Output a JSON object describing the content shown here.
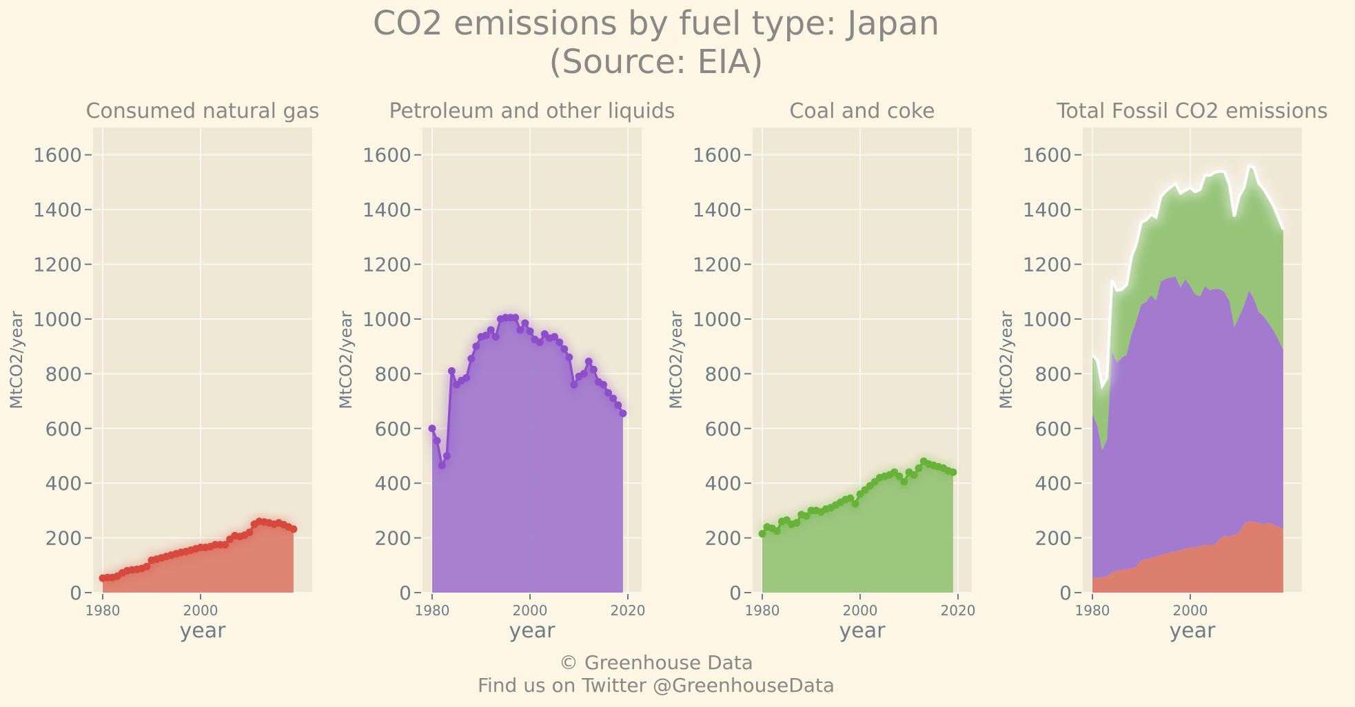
{
  "chart_data": {
    "type": "line",
    "title": "CO2 emissions by fuel type: Japan",
    "subtitle": "(Source: EIA)",
    "years": [
      1980,
      1981,
      1982,
      1983,
      1984,
      1985,
      1986,
      1987,
      1988,
      1989,
      1990,
      1991,
      1992,
      1993,
      1994,
      1995,
      1996,
      1997,
      1998,
      1999,
      2000,
      2001,
      2002,
      2003,
      2004,
      2005,
      2006,
      2007,
      2008,
      2009,
      2010,
      2011,
      2012,
      2013,
      2014,
      2015,
      2016,
      2017,
      2018,
      2019
    ],
    "ylim": [
      0,
      1700
    ],
    "yticks": [
      0,
      200,
      400,
      600,
      800,
      1000,
      1200,
      1400,
      1600
    ],
    "panels": [
      {
        "title": "Consumed natural gas",
        "color": "#d7493d",
        "fill": "#dd7f6e",
        "xlabel": "year",
        "ylabel": "MtCO2/year",
        "xticks": [
          "1980",
          "2000"
        ],
        "values": [
          53,
          55,
          55,
          60,
          72,
          80,
          83,
          85,
          88,
          95,
          118,
          122,
          127,
          132,
          137,
          142,
          147,
          150,
          155,
          160,
          165,
          165,
          168,
          175,
          175,
          175,
          195,
          208,
          205,
          210,
          220,
          250,
          260,
          258,
          255,
          250,
          255,
          248,
          240,
          232
        ]
      },
      {
        "title": "Petroleum and other liquids",
        "color": "#8c4fc9",
        "fill": "#a27bcf",
        "xlabel": "year",
        "ylabel": "MtCO2/year",
        "xticks": [
          "1980",
          "2000",
          "2020"
        ],
        "values": [
          600,
          555,
          465,
          500,
          810,
          760,
          775,
          785,
          855,
          900,
          935,
          940,
          960,
          935,
          1000,
          1005,
          1005,
          1005,
          960,
          985,
          955,
          925,
          915,
          945,
          930,
          935,
          915,
          890,
          860,
          760,
          790,
          800,
          845,
          815,
          770,
          760,
          730,
          710,
          685,
          655
        ]
      },
      {
        "title": "Coal and coke",
        "color": "#67b239",
        "fill": "#98c47a",
        "xlabel": "year",
        "ylabel": "MtCO2/year",
        "xticks": [
          "1980",
          "2000",
          "2020"
        ],
        "values": [
          215,
          240,
          235,
          225,
          260,
          265,
          250,
          255,
          285,
          280,
          300,
          300,
          295,
          305,
          310,
          320,
          330,
          340,
          345,
          325,
          360,
          375,
          390,
          405,
          420,
          425,
          430,
          440,
          425,
          405,
          440,
          430,
          455,
          480,
          470,
          465,
          460,
          455,
          445,
          440
        ]
      },
      {
        "title": "Total Fossil CO2 emissions",
        "xlabel": "year",
        "ylabel": "MtCO2/year",
        "xticks": [
          "1980",
          "2000"
        ],
        "line_color": "#ffffff",
        "series_order": [
          "Consumed natural gas",
          "Petroleum and other liquids",
          "Coal and coke"
        ]
      }
    ]
  },
  "footer": {
    "line1": "© Greenhouse Data",
    "line2": "Find us on Twitter @GreenhouseData"
  }
}
